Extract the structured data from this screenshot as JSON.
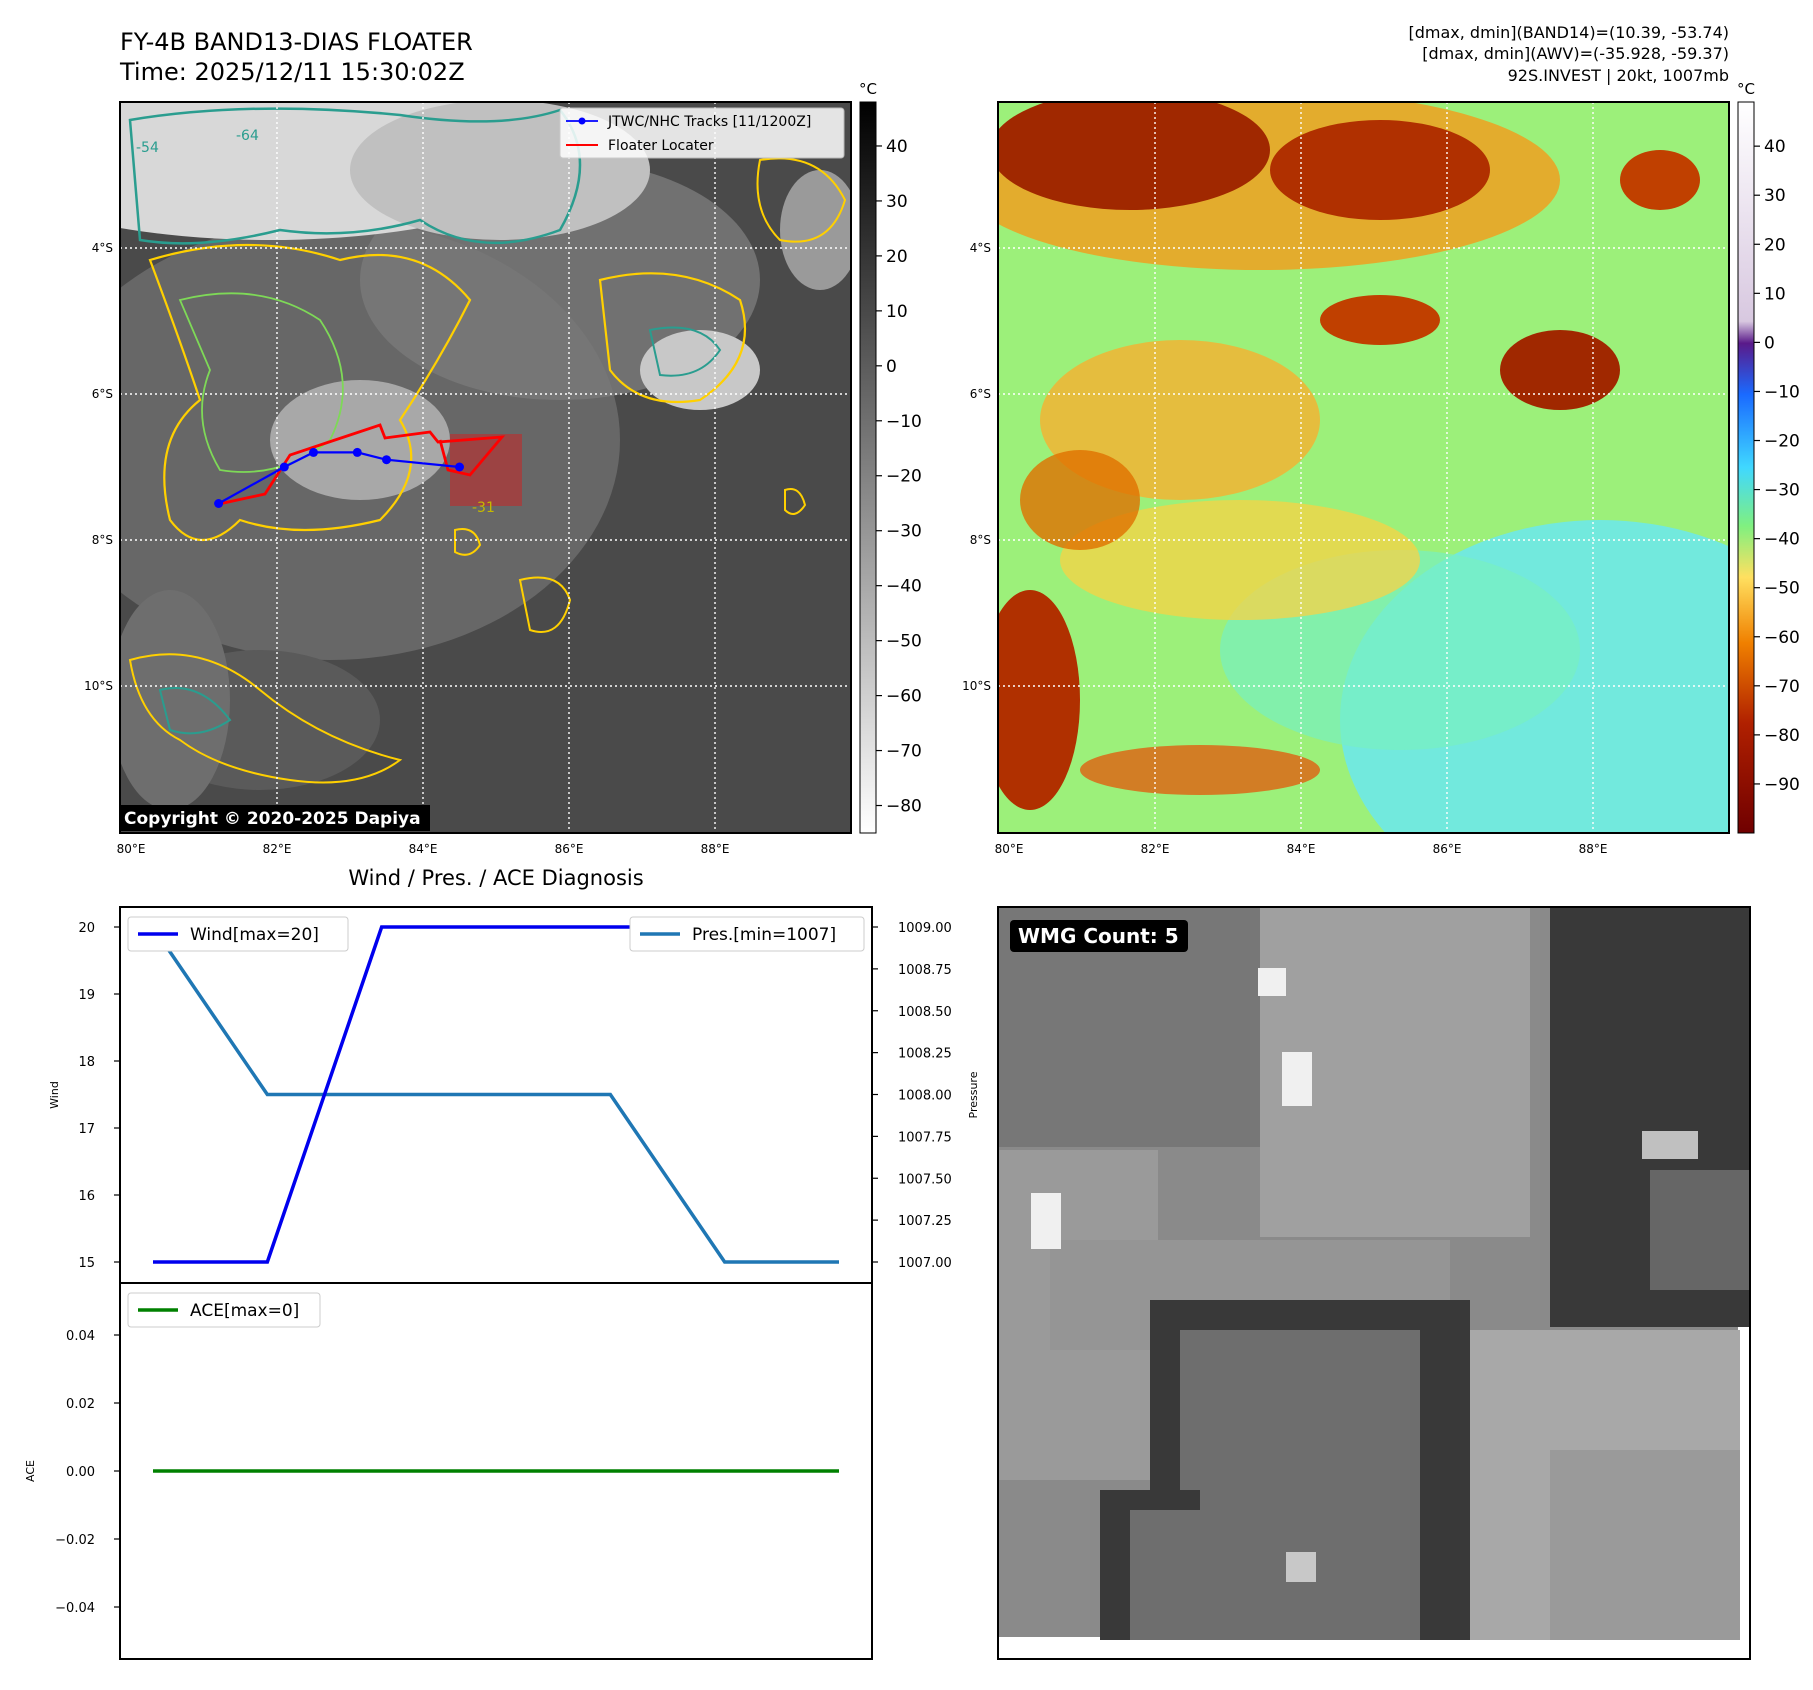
{
  "header": {
    "title_line1": "FY-4B BAND13-DIAS FLOATER",
    "title_line2": "Time: 2025/12/11 15:30:02Z",
    "info_line1": "[dmax, dmin](BAND14)=(10.39, -53.74)",
    "info_line2": "[dmax, dmin](AWV)=(-35.928, -59.37)",
    "info_line3": "92S.INVEST | 20kt, 1007mb"
  },
  "ir_panel": {
    "lat_labels": [
      "4°S",
      "6°S",
      "8°S",
      "10°S"
    ],
    "lon_labels": [
      "80°E",
      "82°E",
      "84°E",
      "86°E",
      "88°E"
    ],
    "copyright": "Copyright © 2020-2025 Dapiya",
    "legend": {
      "track": "JTWC/NHC Tracks [11/1200Z]",
      "locater": "Floater Locater"
    },
    "contour_labels": [
      "-54",
      "-64",
      "-31"
    ],
    "colorbar_unit": "°C",
    "colorbar_ticks": [
      "40",
      "30",
      "20",
      "10",
      "0",
      "−10",
      "−20",
      "−30",
      "−40",
      "−50",
      "−60",
      "−70",
      "−80"
    ],
    "track_points": [
      {
        "lon": 81.2,
        "lat": -7.5
      },
      {
        "lon": 82.1,
        "lat": -7.0
      },
      {
        "lon": 82.5,
        "lat": -6.8
      },
      {
        "lon": 83.1,
        "lat": -6.8
      },
      {
        "lon": 83.5,
        "lat": -6.9
      },
      {
        "lon": 84.5,
        "lat": -7.0
      }
    ]
  },
  "wv_panel": {
    "lat_labels": [
      "4°S",
      "6°S",
      "8°S",
      "10°S"
    ],
    "lon_labels": [
      "80°E",
      "82°E",
      "84°E",
      "86°E",
      "88°E"
    ],
    "colorbar_unit": "°C",
    "colorbar_ticks": [
      "40",
      "30",
      "20",
      "10",
      "0",
      "−10",
      "−20",
      "−30",
      "−40",
      "−50",
      "−60",
      "−70",
      "−80",
      "−90"
    ]
  },
  "diag_panel": {
    "title": "Wind / Pres. / ACE Diagnosis",
    "wind_legend": "Wind[max=20]",
    "pres_legend": "Pres.[min=1007]",
    "ace_legend": "ACE[max=0]",
    "wind_ylabel": "Wind",
    "pres_ylabel": "Pressure",
    "ace_ylabel": "ACE",
    "wind_ticks": [
      "20",
      "19",
      "18",
      "17",
      "16",
      "15"
    ],
    "pres_ticks": [
      "1009.00",
      "1008.75",
      "1008.50",
      "1008.25",
      "1008.00",
      "1007.75",
      "1007.50",
      "1007.25",
      "1007.00"
    ],
    "ace_ticks": [
      "0.04",
      "0.02",
      "0.00",
      "−0.02",
      "−0.04"
    ]
  },
  "wmg_panel": {
    "label": "WMG Count: 5"
  },
  "colors": {
    "wind": "#0000ee",
    "pressure": "#1f77b4",
    "ace": "#008000",
    "track": "#0000ff",
    "locater": "#ff0000"
  },
  "chart_data": [
    {
      "type": "line",
      "x": [
        0,
        1,
        2,
        3,
        4,
        5,
        6
      ],
      "series": [
        {
          "name": "Wind[max=20]",
          "values": [
            15,
            15,
            20,
            20,
            20,
            20,
            20
          ]
        },
        {
          "name": "Pres.[min=1007]",
          "values": [
            1009,
            1008,
            1008,
            1008,
            1008,
            1007,
            1007
          ]
        }
      ],
      "ylabel": "Wind",
      "ylim": [
        14.95,
        20.05
      ],
      "y2label": "Pressure",
      "y2lim": [
        1006.99,
        1009.01
      ],
      "legend": [
        "top-left",
        "top-right"
      ]
    },
    {
      "type": "line",
      "x": [
        0,
        1,
        2,
        3,
        4,
        5,
        6
      ],
      "series": [
        {
          "name": "ACE[max=0]",
          "values": [
            0,
            0,
            0,
            0,
            0,
            0,
            0
          ]
        }
      ],
      "ylabel": "ACE",
      "ylim": [
        -0.055,
        0.055
      ],
      "legend": "top-left"
    }
  ]
}
